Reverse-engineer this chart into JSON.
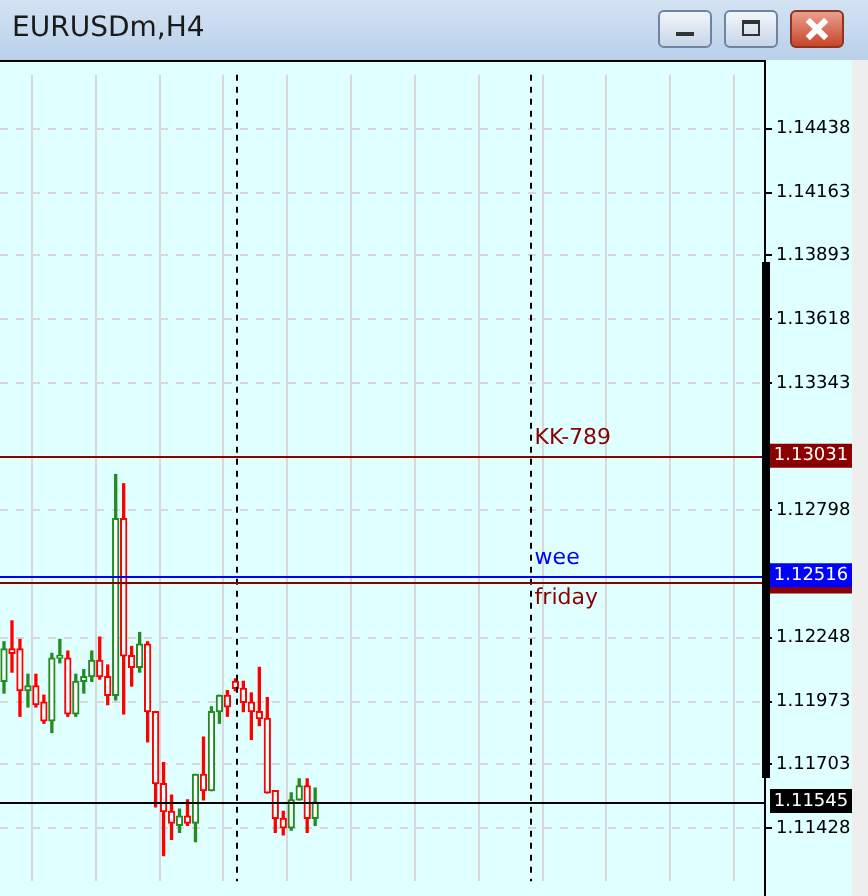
{
  "chart_data": {
    "type": "candlestick",
    "title": "EURUSDm,H4",
    "categories": [
      null,
      null,
      null,
      null,
      null,
      null,
      null,
      null,
      null,
      null,
      null,
      null,
      null,
      null,
      null,
      null,
      null,
      null,
      null,
      null,
      null,
      null,
      null,
      null,
      null,
      null,
      null,
      null,
      null,
      null,
      null,
      null,
      null,
      null,
      null,
      null,
      null,
      null,
      null,
      null,
      null,
      null,
      null,
      null,
      null,
      null,
      null,
      null,
      null,
      null,
      null,
      null,
      null,
      null,
      null,
      null,
      null,
      null,
      null,
      null,
      null,
      null,
      null,
      null,
      null,
      null,
      null,
      null,
      null,
      null,
      null,
      null,
      null,
      null,
      null,
      null,
      null,
      null,
      null,
      null,
      null,
      null,
      null,
      null,
      null,
      null,
      null,
      null,
      null,
      null,
      null,
      null,
      null,
      null,
      null,
      null
    ],
    "ohlc": [
      [
        1.1206,
        1.1223,
        1.1201,
        1.122
      ],
      [
        1.122,
        1.1232,
        1.121,
        1.1218
      ],
      [
        1.122,
        1.1224,
        1.1191,
        1.1202
      ],
      [
        1.1202,
        1.1209,
        1.1195,
        1.1204
      ],
      [
        1.1204,
        1.1209,
        1.1195,
        1.1196
      ],
      [
        1.1197,
        1.12,
        1.1188,
        1.1189
      ],
      [
        1.1189,
        1.1218,
        1.1184,
        1.1216
      ],
      [
        1.1216,
        1.1224,
        1.1214,
        1.1217
      ],
      [
        1.1216,
        1.1219,
        1.1191,
        1.1192
      ],
      [
        1.1192,
        1.1209,
        1.1191,
        1.1206
      ],
      [
        1.1206,
        1.1211,
        1.1201,
        1.1208
      ],
      [
        1.1208,
        1.1219,
        1.1206,
        1.1215
      ],
      [
        1.1215,
        1.1225,
        1.1207,
        1.1208
      ],
      [
        1.1208,
        1.1213,
        1.1196,
        1.12
      ],
      [
        1.12,
        1.1295,
        1.1198,
        1.1276
      ],
      [
        1.1276,
        1.1291,
        1.1192,
        1.1217
      ],
      [
        1.1217,
        1.1221,
        1.1204,
        1.1212
      ],
      [
        1.1212,
        1.1227,
        1.121,
        1.1222
      ],
      [
        1.1222,
        1.1223,
        1.118,
        1.1193
      ],
      [
        1.1193,
        1.1193,
        1.1152,
        1.1162
      ],
      [
        1.1162,
        1.1171,
        1.1131,
        1.115
      ],
      [
        1.115,
        1.1157,
        1.1138,
        1.1145
      ],
      [
        1.1144,
        1.1151,
        1.1141,
        1.1148
      ],
      [
        1.1148,
        1.1155,
        1.1144,
        1.1145
      ],
      [
        1.1145,
        1.1166,
        1.1137,
        1.1166
      ],
      [
        1.1166,
        1.1182,
        1.1155,
        1.1159
      ],
      [
        1.1159,
        1.1195,
        1.1159,
        1.1193
      ],
      [
        1.1193,
        1.12,
        1.1188,
        1.12
      ],
      [
        1.12,
        1.1202,
        1.1191,
        1.1195
      ],
      [
        1.1206,
        1.1207,
        1.1202,
        1.1203
      ],
      [
        1.1203,
        1.1206,
        1.1193,
        1.1197
      ],
      [
        1.1197,
        1.1201,
        1.1181,
        1.1193
      ],
      [
        1.1193,
        1.1212,
        1.1187,
        1.119
      ],
      [
        1.119,
        1.1199,
        1.1158,
        1.1158
      ],
      [
        1.1159,
        1.1159,
        1.1141,
        1.1147
      ],
      [
        1.1147,
        1.115,
        1.114,
        1.1143
      ],
      [
        1.1143,
        1.1158,
        1.1142,
        1.1155
      ],
      [
        1.1155,
        1.1164,
        1.1155,
        1.1161
      ],
      [
        1.1161,
        1.1164,
        1.1141,
        1.1147
      ],
      [
        1.1147,
        1.116,
        1.1144,
        1.1154
      ],
      null,
      null,
      null,
      null,
      null,
      null,
      null,
      null,
      null,
      null,
      null,
      null,
      null,
      null,
      null,
      null,
      null,
      null,
      null,
      null,
      null,
      null,
      null,
      null,
      null,
      null,
      null,
      null,
      null,
      null,
      null,
      null,
      null,
      null,
      null,
      null,
      null,
      null,
      null,
      null,
      null,
      null,
      null,
      null,
      null,
      null,
      null,
      null,
      null,
      null,
      null,
      null,
      null,
      null,
      null,
      null
    ],
    "colors": [
      "#228b22",
      "#ff0000",
      "#ff0000",
      "#228b22",
      "#ff0000",
      "#ff0000",
      "#228b22",
      "#228b22",
      "#ff0000",
      "#228b22",
      "#228b22",
      "#228b22",
      "#ff0000",
      "#ff0000",
      "#228b22",
      "#ff0000",
      "#ff0000",
      "#228b22",
      "#ff0000",
      "#ff0000",
      "#ff0000",
      "#ff0000",
      "#228b22",
      "#ff0000",
      "#228b22",
      "#ff0000",
      "#228b22",
      "#228b22",
      "#ff0000",
      "#ff0000",
      "#ff0000",
      "#ff0000",
      "#ff0000",
      "#ff0000",
      "#ff0000",
      "#ff0000",
      "#228b22",
      "#228b22",
      "#ff0000",
      "#228b22",
      null,
      null,
      null,
      null,
      null,
      null,
      null,
      null,
      null,
      null,
      null,
      null,
      null,
      null,
      null,
      null,
      null,
      null,
      null,
      null,
      null,
      null,
      null,
      null,
      null,
      null,
      null,
      null,
      null,
      null,
      null,
      null,
      null,
      null,
      null,
      null,
      null,
      null,
      null,
      null,
      null,
      null,
      null,
      null,
      null,
      null,
      null,
      null,
      null,
      null,
      null,
      null,
      null,
      null,
      null,
      null
    ],
    "ylim": [
      1.112,
      1.1467
    ],
    "yticks": [
      1.11428,
      1.11703,
      1.11973,
      1.12248,
      1.12798,
      1.13343,
      1.13618,
      1.13893,
      1.14163,
      1.14438
    ],
    "ref_lines": [
      {
        "axis": "y",
        "value": 1.13031,
        "label": "KK-789",
        "color": "#8b0000"
      },
      {
        "axis": "y",
        "value": 1.12516,
        "label": "wee",
        "color": "#0000ff"
      },
      {
        "axis": "y",
        "value": 1.11545,
        "color": "#000000"
      },
      {
        "axis": "y",
        "value": 1.1249,
        "label": "friday",
        "color": "#8b0000"
      }
    ],
    "annotations": [
      "1.13031",
      "1.12516",
      "1.11545"
    ],
    "grid": true,
    "legend": false,
    "tick_labels": "y"
  }
}
